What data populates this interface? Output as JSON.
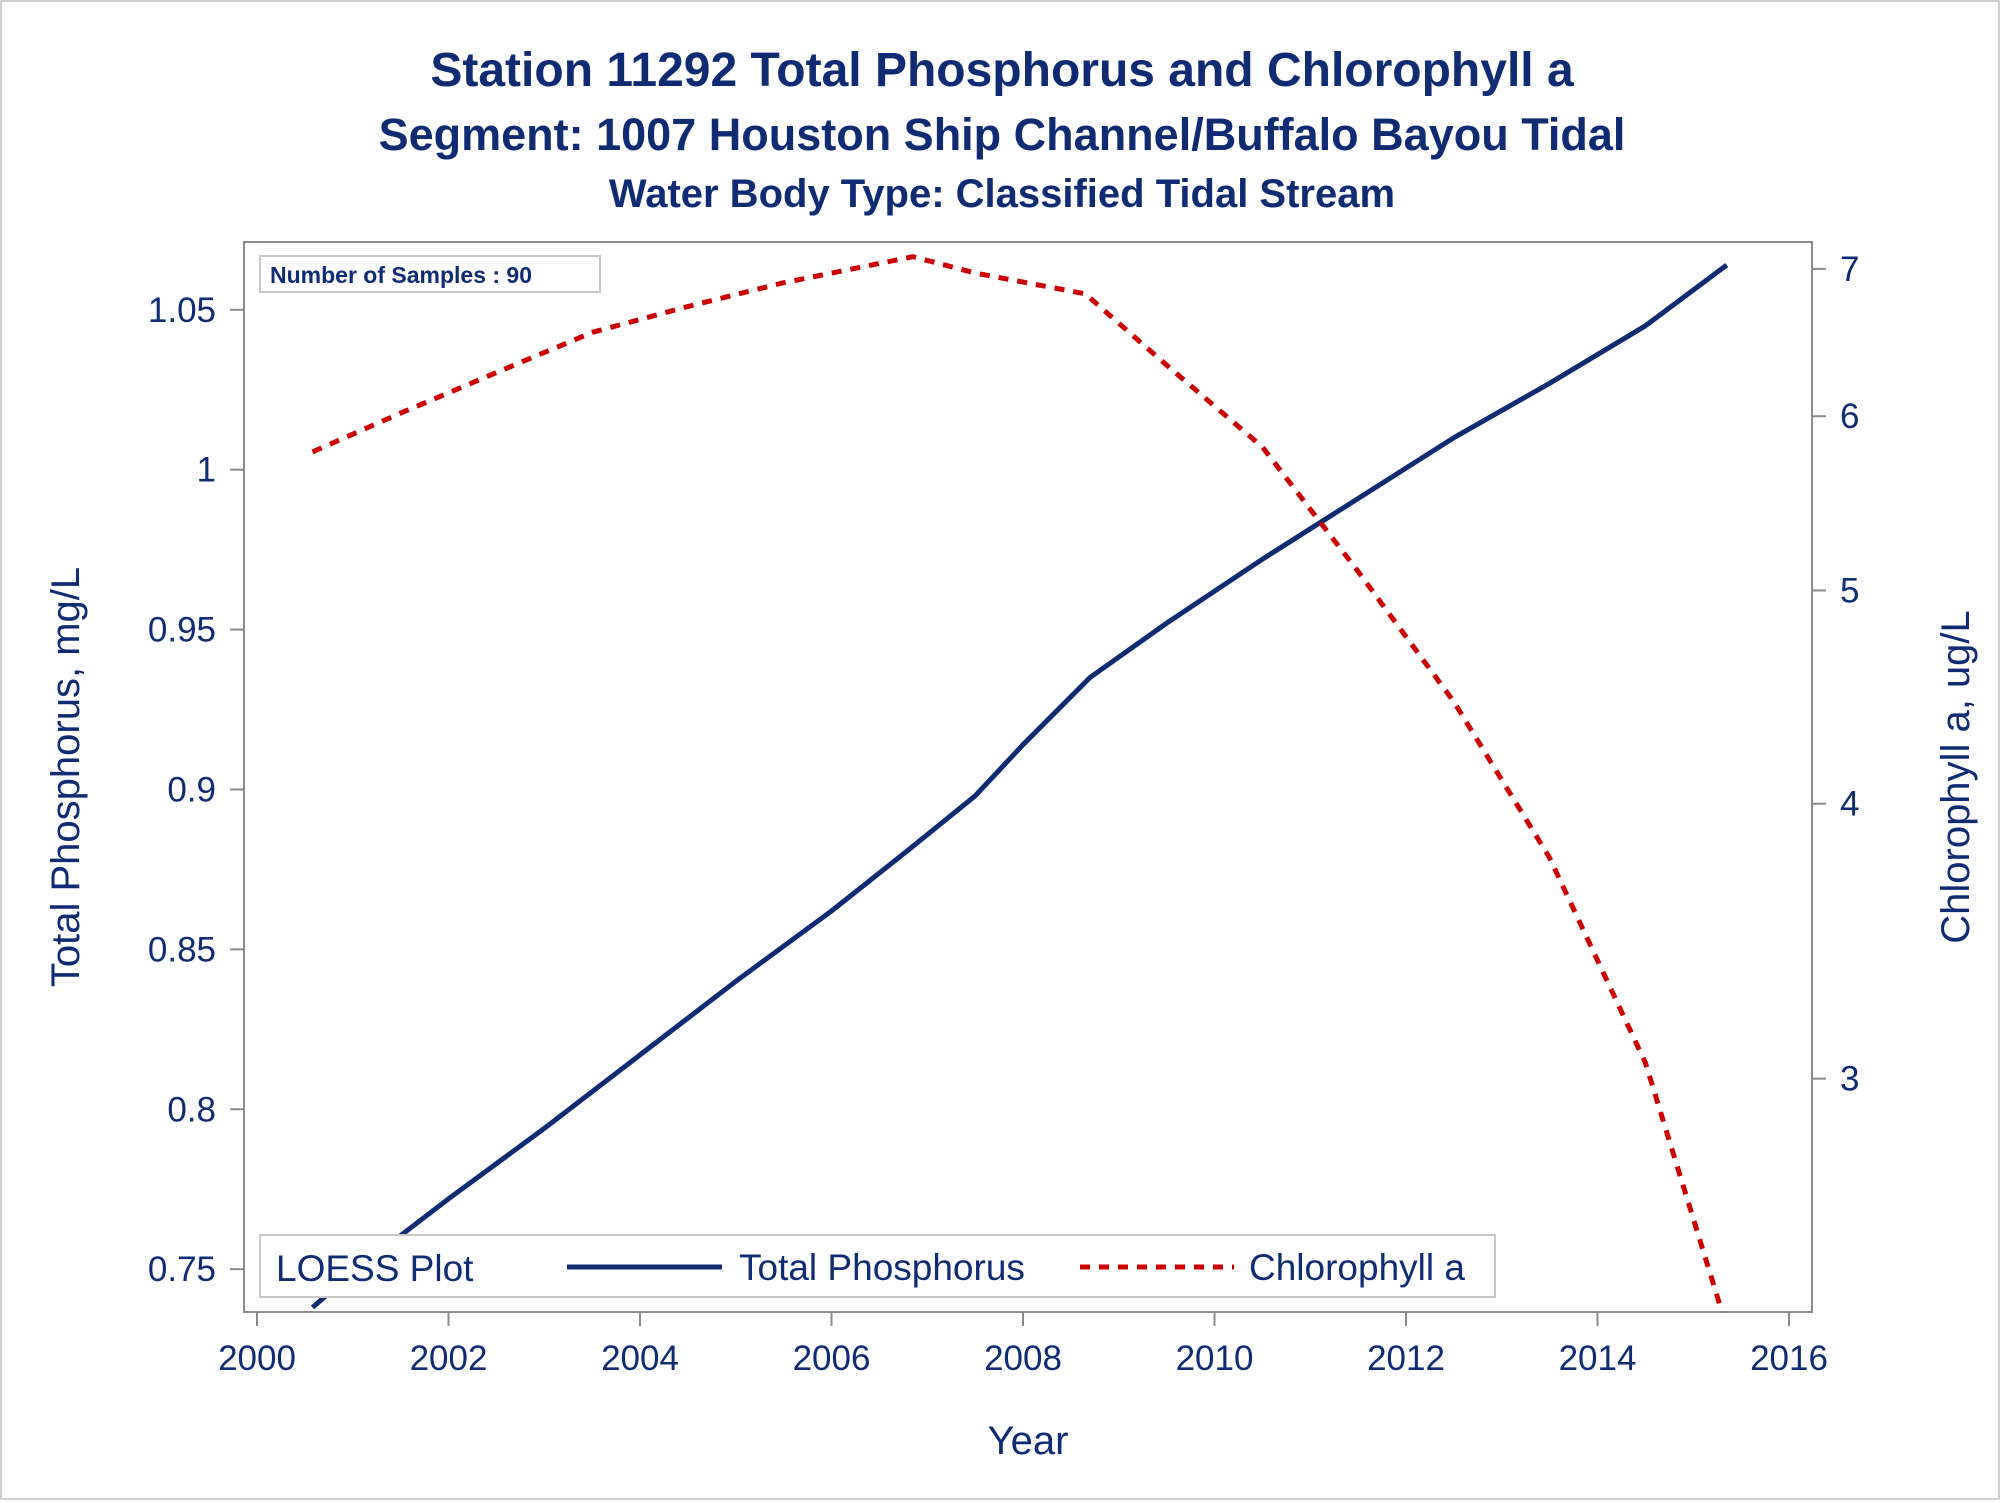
{
  "titles": [
    "Station 11292   Total Phosphorus and Chlorophyll a",
    "Segment: 1007  Houston Ship Channel/Buffalo Bayou Tidal",
    "Water Body Type: Classified Tidal Stream"
  ],
  "note": "Number of Samples : 90",
  "legend": {
    "title": "LOESS Plot",
    "items": [
      "Total Phosphorus",
      "Chlorophyll a"
    ]
  },
  "colors": {
    "phosphorus": "#0e2b74",
    "chlorophyll": "#cc0000",
    "text": "#0e2b74",
    "frame": "#8a8a8a"
  },
  "chart_data": {
    "type": "line",
    "xlabel": "Year",
    "ylabel": "Total Phosphorus, mg/L",
    "y2label": "Chlorophyll a, ug/L",
    "xlim": [
      2000,
      2016
    ],
    "ylim": [
      0.7366,
      1.0712
    ],
    "y2lim": [
      2.35,
      7.2
    ],
    "y2scale": "log",
    "xticks": [
      "2000",
      "2002",
      "2004",
      "2006",
      "2008",
      "2010",
      "2012",
      "2014",
      "2016"
    ],
    "yticks": [
      "0.75",
      "0.8",
      "0.85",
      "0.9",
      "0.95",
      "1",
      "1.05"
    ],
    "y2ticks": [
      "3",
      "4",
      "5",
      "6",
      "7"
    ],
    "grid": false,
    "legend_position": "bottom-inside",
    "series": [
      {
        "name": "Total Phosphorus",
        "axis": "left",
        "style": "solid",
        "x": [
          2000.58,
          2001.0,
          2002.0,
          2003.0,
          2004.0,
          2005.0,
          2006.0,
          2006.8,
          2007.5,
          2008.0,
          2008.7,
          2009.5,
          2010.5,
          2011.5,
          2012.5,
          2013.5,
          2014.5,
          2015.35
        ],
        "y": [
          0.738,
          0.749,
          0.772,
          0.794,
          0.817,
          0.84,
          0.862,
          0.881,
          0.898,
          0.914,
          0.935,
          0.952,
          0.972,
          0.991,
          1.01,
          1.027,
          1.045,
          1.064
        ]
      },
      {
        "name": "Chlorophyll a",
        "axis": "right",
        "style": "dashed",
        "x": [
          2000.58,
          2001.5,
          2002.5,
          2003.5,
          2004.5,
          2005.5,
          2006.85,
          2007.5,
          2008.65,
          2009.5,
          2010.5,
          2011.5,
          2012.5,
          2013.5,
          2014.5,
          2015.3
        ],
        "y": [
          5.78,
          6.02,
          6.28,
          6.55,
          6.73,
          6.9,
          7.09,
          6.97,
          6.82,
          6.33,
          5.81,
          5.1,
          4.45,
          3.78,
          3.05,
          2.35
        ]
      }
    ]
  }
}
